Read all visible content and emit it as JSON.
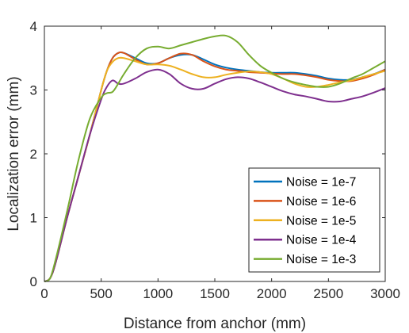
{
  "chart_data": {
    "type": "line",
    "title": "",
    "xlabel": "Distance from anchor (mm)",
    "ylabel": "Localization error (mm)",
    "xlim": [
      0,
      3000
    ],
    "ylim": [
      0,
      4
    ],
    "xticks": [
      0,
      500,
      1000,
      1500,
      2000,
      2500,
      3000
    ],
    "yticks": [
      0,
      1,
      2,
      3,
      4
    ],
    "grid": false,
    "legend_position": "bottom-right",
    "series": [
      {
        "name": "Noise = 1e-7",
        "color": "#0072BD",
        "x": [
          0,
          50,
          100,
          200,
          300,
          400,
          500,
          550,
          600,
          650,
          700,
          800,
          900,
          1000,
          1100,
          1200,
          1300,
          1400,
          1500,
          1600,
          1700,
          1800,
          1900,
          2000,
          2100,
          2200,
          2300,
          2400,
          2500,
          2600,
          2700,
          2800,
          2900,
          3000
        ],
        "y": [
          0.0,
          0.05,
          0.3,
          1.0,
          1.65,
          2.3,
          3.0,
          3.3,
          3.5,
          3.58,
          3.58,
          3.5,
          3.42,
          3.42,
          3.5,
          3.55,
          3.55,
          3.48,
          3.4,
          3.35,
          3.32,
          3.3,
          3.28,
          3.27,
          3.27,
          3.27,
          3.25,
          3.22,
          3.18,
          3.16,
          3.16,
          3.2,
          3.25,
          3.32
        ]
      },
      {
        "name": "Noise = 1e-6",
        "color": "#D95319",
        "x": [
          0,
          50,
          100,
          200,
          300,
          400,
          500,
          550,
          600,
          650,
          700,
          800,
          900,
          1000,
          1100,
          1200,
          1300,
          1400,
          1500,
          1600,
          1700,
          1800,
          1900,
          2000,
          2100,
          2200,
          2300,
          2400,
          2500,
          2600,
          2700,
          2800,
          2900,
          3000
        ],
        "y": [
          0.0,
          0.05,
          0.3,
          1.0,
          1.65,
          2.3,
          3.0,
          3.3,
          3.5,
          3.58,
          3.58,
          3.48,
          3.4,
          3.42,
          3.5,
          3.57,
          3.55,
          3.45,
          3.37,
          3.32,
          3.3,
          3.28,
          3.27,
          3.26,
          3.25,
          3.25,
          3.23,
          3.2,
          3.16,
          3.14,
          3.14,
          3.18,
          3.24,
          3.32
        ]
      },
      {
        "name": "Noise = 1e-5",
        "color": "#EDB120",
        "x": [
          0,
          50,
          100,
          200,
          300,
          400,
          500,
          550,
          600,
          650,
          700,
          800,
          900,
          1000,
          1100,
          1200,
          1300,
          1400,
          1500,
          1600,
          1700,
          1800,
          1900,
          2000,
          2100,
          2200,
          2300,
          2400,
          2500,
          2600,
          2700,
          2800,
          2900,
          3000
        ],
        "y": [
          0.0,
          0.05,
          0.3,
          1.0,
          1.65,
          2.3,
          3.0,
          3.3,
          3.44,
          3.5,
          3.5,
          3.45,
          3.4,
          3.4,
          3.38,
          3.32,
          3.25,
          3.2,
          3.2,
          3.24,
          3.27,
          3.29,
          3.28,
          3.25,
          3.18,
          3.1,
          3.05,
          3.05,
          3.08,
          3.12,
          3.15,
          3.2,
          3.25,
          3.3
        ]
      },
      {
        "name": "Noise = 1e-4",
        "color": "#7E2F8E",
        "x": [
          0,
          50,
          100,
          200,
          300,
          400,
          500,
          550,
          600,
          650,
          700,
          800,
          900,
          1000,
          1100,
          1200,
          1300,
          1400,
          1500,
          1600,
          1700,
          1800,
          1900,
          2000,
          2100,
          2200,
          2300,
          2400,
          2500,
          2600,
          2700,
          2800,
          2900,
          3000
        ],
        "y": [
          0.0,
          0.05,
          0.3,
          1.0,
          1.65,
          2.3,
          2.85,
          3.05,
          3.15,
          3.1,
          3.1,
          3.18,
          3.28,
          3.32,
          3.25,
          3.1,
          3.02,
          3.02,
          3.1,
          3.17,
          3.2,
          3.18,
          3.12,
          3.05,
          2.98,
          2.93,
          2.9,
          2.86,
          2.82,
          2.82,
          2.86,
          2.9,
          2.96,
          3.03
        ]
      },
      {
        "name": "Noise = 1e-3",
        "color": "#77AC30",
        "x": [
          0,
          50,
          100,
          200,
          300,
          400,
          500,
          550,
          600,
          650,
          700,
          800,
          900,
          1000,
          1100,
          1200,
          1300,
          1400,
          1500,
          1600,
          1700,
          1800,
          1900,
          2000,
          2100,
          2200,
          2300,
          2400,
          2500,
          2600,
          2700,
          2800,
          2900,
          3000
        ],
        "y": [
          0.0,
          0.05,
          0.35,
          1.1,
          1.9,
          2.55,
          2.88,
          2.95,
          2.97,
          3.1,
          3.25,
          3.5,
          3.65,
          3.68,
          3.65,
          3.7,
          3.75,
          3.8,
          3.84,
          3.85,
          3.75,
          3.55,
          3.38,
          3.27,
          3.18,
          3.12,
          3.08,
          3.05,
          3.05,
          3.1,
          3.18,
          3.25,
          3.35,
          3.45
        ]
      }
    ]
  }
}
